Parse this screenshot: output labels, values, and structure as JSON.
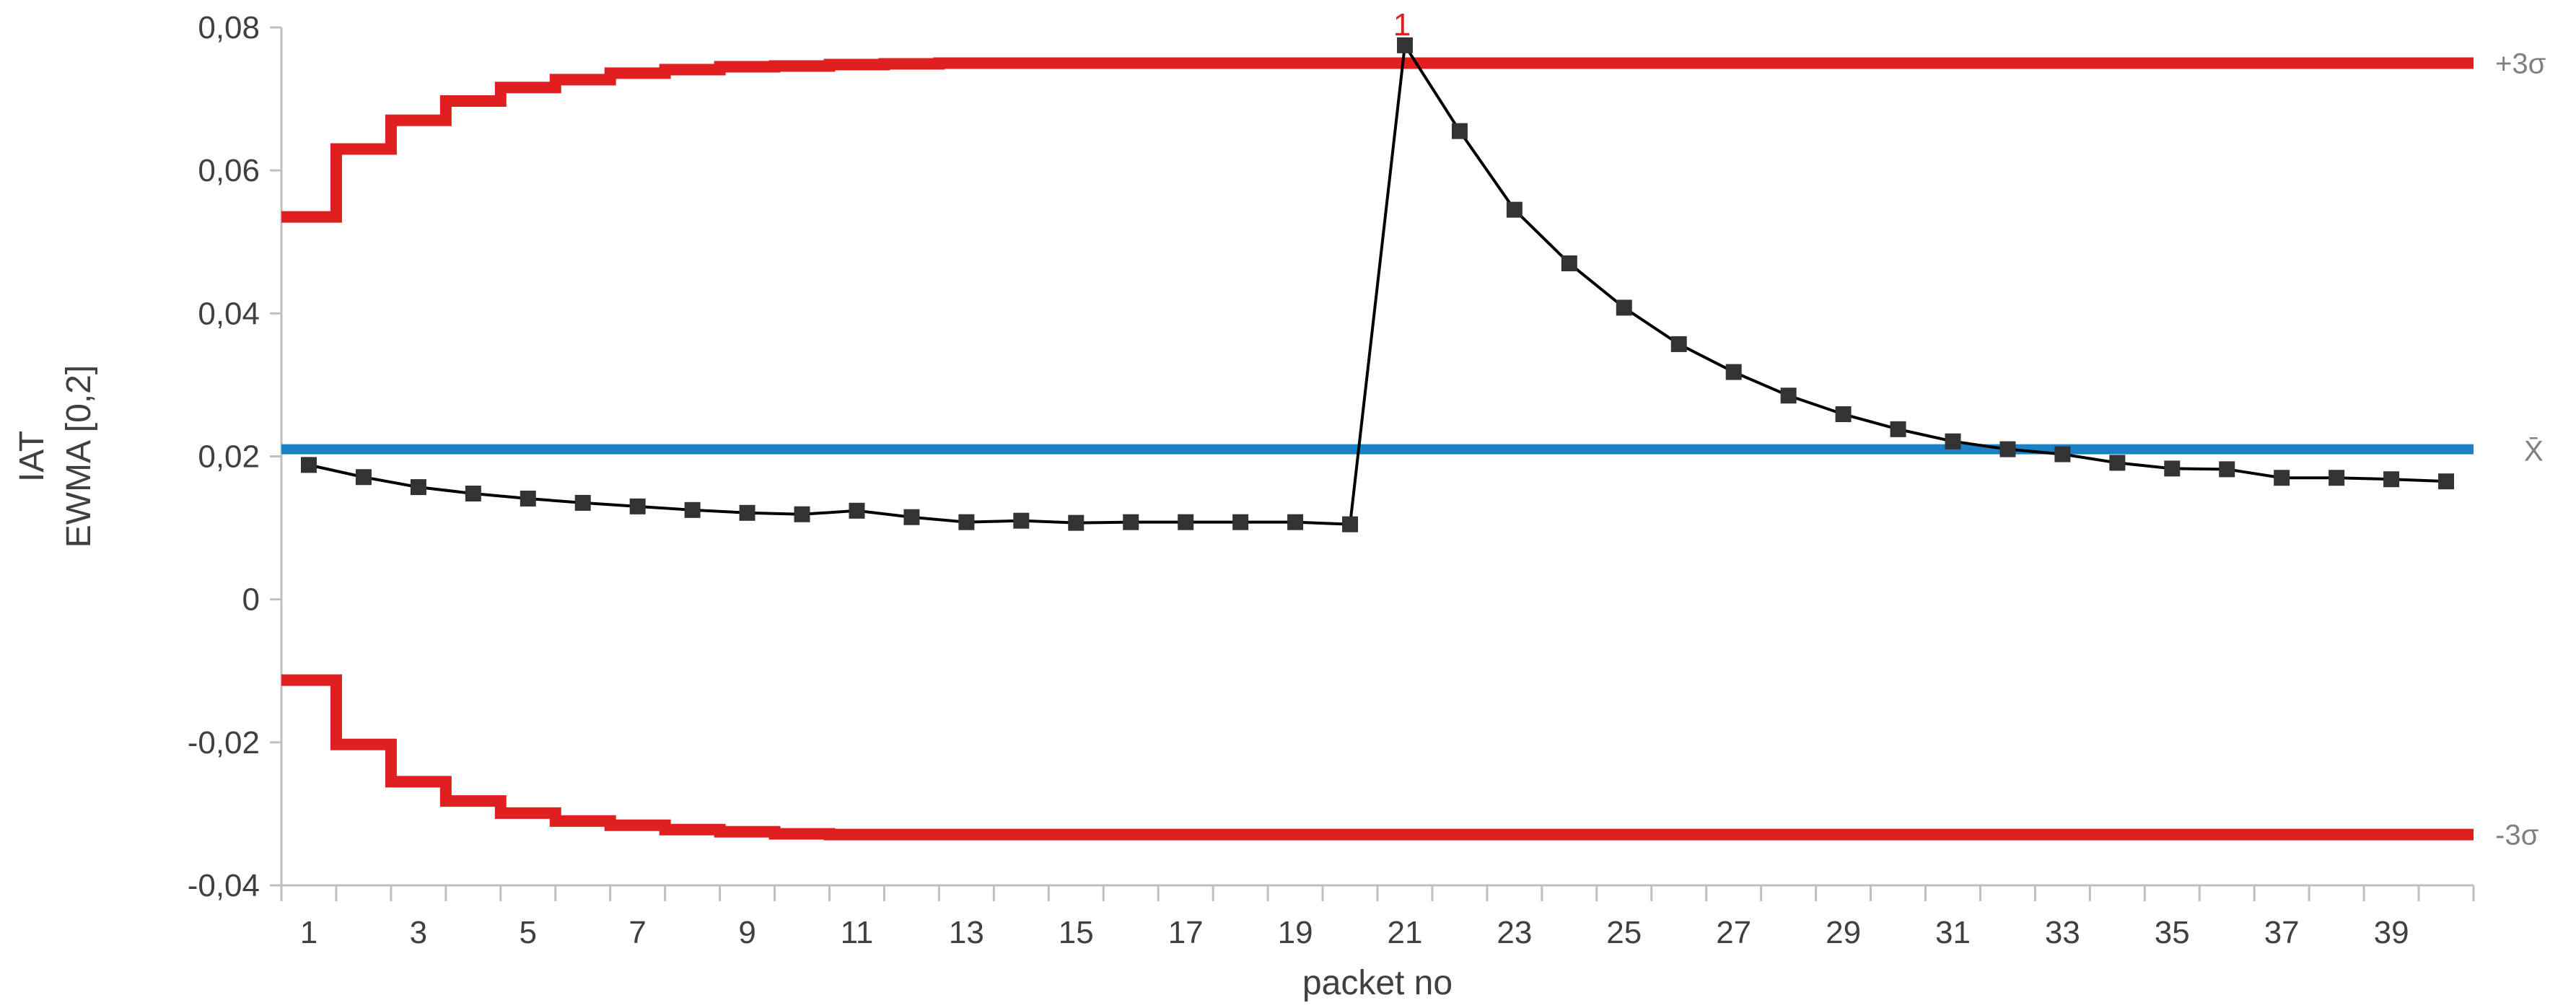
{
  "chart_data": {
    "type": "line",
    "title": "",
    "xlabel": "packet no",
    "ylabel_lines": [
      "IAT",
      "EWMA [0,2]"
    ],
    "x": [
      1,
      2,
      3,
      4,
      5,
      6,
      7,
      8,
      9,
      10,
      11,
      12,
      13,
      14,
      15,
      16,
      17,
      18,
      19,
      20,
      21,
      22,
      23,
      24,
      25,
      26,
      27,
      28,
      29,
      30,
      31,
      32,
      33,
      34,
      35,
      36,
      37,
      38,
      39,
      40
    ],
    "xlim": [
      0.5,
      40.5
    ],
    "x_tick_labels": [
      "1",
      "3",
      "5",
      "7",
      "9",
      "11",
      "13",
      "15",
      "17",
      "19",
      "21",
      "23",
      "25",
      "27",
      "29",
      "31",
      "33",
      "35",
      "37",
      "39"
    ],
    "ylim": [
      -0.04,
      0.08
    ],
    "y_ticks": [
      -0.04,
      -0.02,
      0,
      0.02,
      0.04,
      0.06,
      0.08
    ],
    "y_tick_labels": [
      "-0,04",
      "-0,02",
      "0",
      "0,02",
      "0,04",
      "0,06",
      "0,08"
    ],
    "grid": false,
    "series": [
      {
        "name": "",
        "color": "#000000",
        "marker_color": "#333333",
        "values": [
          0.0188,
          0.0171,
          0.0157,
          0.0148,
          0.0141,
          0.0135,
          0.013,
          0.0125,
          0.0121,
          0.0119,
          0.0124,
          0.0115,
          0.0108,
          0.011,
          0.0107,
          0.0108,
          0.0108,
          0.0108,
          0.0108,
          0.0105,
          0.0775,
          0.0655,
          0.0545,
          0.047,
          0.0408,
          0.0357,
          0.0318,
          0.0285,
          0.0259,
          0.0238,
          0.0221,
          0.021,
          0.0203,
          0.0191,
          0.0183,
          0.0182,
          0.017,
          0.017,
          0.0168,
          0.0165
        ]
      }
    ],
    "ucl": {
      "label": "+3σ",
      "color": "#e02020",
      "values": [
        0.0535,
        0.063,
        0.067,
        0.0697,
        0.0716,
        0.0727,
        0.0736,
        0.0741,
        0.0745,
        0.0746,
        0.0748,
        0.0749,
        0.075,
        0.075,
        0.075,
        0.075,
        0.075,
        0.075,
        0.075,
        0.075,
        0.075,
        0.075,
        0.075,
        0.075,
        0.075,
        0.075,
        0.075,
        0.075,
        0.075,
        0.075,
        0.075,
        0.075,
        0.075,
        0.075,
        0.075,
        0.075,
        0.075,
        0.075,
        0.075,
        0.075
      ]
    },
    "lcl": {
      "label": "-3σ",
      "color": "#e02020",
      "values": [
        -0.0113,
        -0.0203,
        -0.0255,
        -0.0282,
        -0.0299,
        -0.031,
        -0.0316,
        -0.0322,
        -0.0325,
        -0.0328,
        -0.0329,
        -0.0329,
        -0.0329,
        -0.0329,
        -0.0329,
        -0.0329,
        -0.0329,
        -0.0329,
        -0.0329,
        -0.0329,
        -0.0329,
        -0.0329,
        -0.0329,
        -0.0329,
        -0.0329,
        -0.0329,
        -0.0329,
        -0.0329,
        -0.0329,
        -0.0329,
        -0.0329,
        -0.0329,
        -0.0329,
        -0.0329,
        -0.0329,
        -0.0329,
        -0.0329,
        -0.0329,
        -0.0329,
        -0.0329
      ]
    },
    "center_line": {
      "label": "X̄",
      "color": "#1a82c4",
      "value": 0.021
    },
    "annotations": [
      {
        "text": "1",
        "x": 21,
        "y": 0.0775,
        "color": "#e02020"
      }
    ]
  }
}
